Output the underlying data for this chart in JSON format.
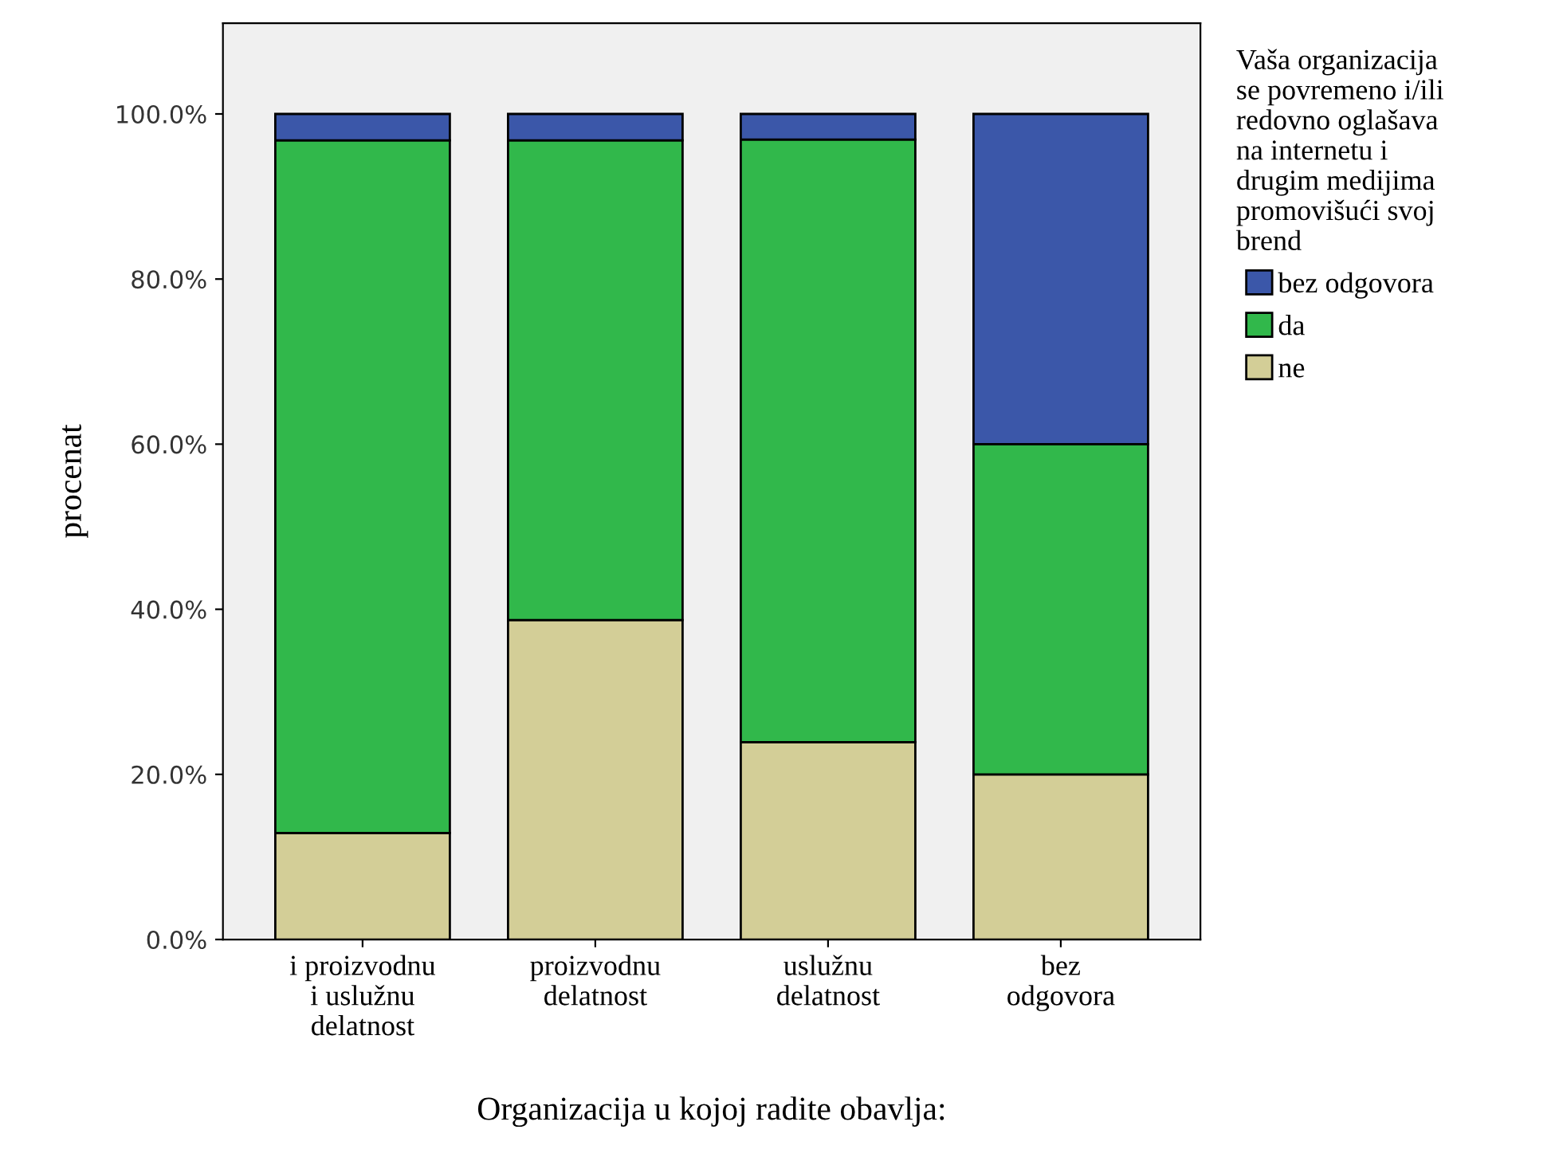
{
  "chart_data": {
    "type": "bar",
    "stacked": true,
    "xlabel": "Organizacija u kojoj radite obavlja:",
    "ylabel": "procenat",
    "legend_title": "Vaša organizacija\nse povremeno i/ili\nredovno oglašava\nna internetu i\ndrugim medijima\npromovišući svoj\nbrend",
    "legend": "top right",
    "grid": false,
    "categories": [
      "i proizvodnu\ni uslužnu\ndelatnost",
      "proizvodnu\ndelatnost",
      "uslužnu\ndelatnost",
      "bez\nodgovora"
    ],
    "series": [
      {
        "name": "ne",
        "color": "#d3ce97",
        "values": [
          12.9,
          38.7,
          23.9,
          20
        ]
      },
      {
        "name": "da",
        "color": "#31b84b",
        "values": [
          83.9,
          58.1,
          73.0,
          40
        ]
      },
      {
        "name": "bez odgovora",
        "color": "#3b57a9",
        "values": [
          3.2,
          3.2,
          3.1,
          40
        ]
      }
    ],
    "ylim": [
      0,
      111
    ],
    "yticks": [
      {
        "value": 0,
        "label": "0.0%"
      },
      {
        "value": 20,
        "label": "20.0%"
      },
      {
        "value": 40,
        "label": "40.0%"
      },
      {
        "value": 60,
        "label": "60.0%"
      },
      {
        "value": 80,
        "label": "80.0%"
      },
      {
        "value": 100,
        "label": "100.0%"
      }
    ]
  }
}
